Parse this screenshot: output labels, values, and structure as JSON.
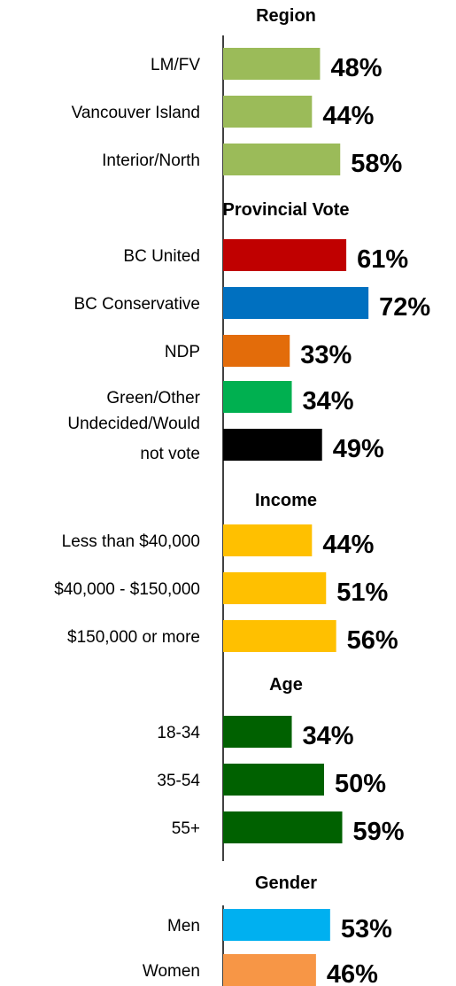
{
  "chart_data": {
    "type": "bar",
    "orientation": "horizontal",
    "groups": [
      {
        "name": "Region",
        "categories": [
          "LM/FV",
          "Vancouver Island",
          "Interior/North"
        ],
        "values": [
          48,
          44,
          58
        ],
        "value_labels": [
          "48%",
          "44%",
          "58%"
        ],
        "colors": [
          "#9bbb59",
          "#9bbb59",
          "#9bbb59"
        ]
      },
      {
        "name": "Provincial Vote",
        "categories": [
          "BC United",
          "BC Conservative",
          "NDP",
          "Green/Other",
          "Undecided/Would not vote"
        ],
        "values": [
          61,
          72,
          33,
          34,
          49
        ],
        "value_labels": [
          "61%",
          "72%",
          "33%",
          "34%",
          "49%"
        ],
        "colors": [
          "#c00000",
          "#0070c0",
          "#e36c0a",
          "#00b050",
          "#000000"
        ]
      },
      {
        "name": "Income",
        "categories": [
          "Less than $40,000",
          "$40,000 - $150,000",
          "$150,000 or more"
        ],
        "values": [
          44,
          51,
          56
        ],
        "value_labels": [
          "44%",
          "51%",
          "56%"
        ],
        "colors": [
          "#ffc000",
          "#ffc000",
          "#ffc000"
        ]
      },
      {
        "name": "Age",
        "categories": [
          "18-34",
          "35-54",
          "55+"
        ],
        "values": [
          34,
          50,
          59
        ],
        "value_labels": [
          "34%",
          "50%",
          "59%"
        ],
        "colors": [
          "#006100",
          "#006100",
          "#006100"
        ]
      },
      {
        "name": "Gender",
        "categories": [
          "Men",
          "Women"
        ],
        "values": [
          53,
          46
        ],
        "value_labels": [
          "53%",
          "46%"
        ],
        "colors": [
          "#00b0f0",
          "#f79646"
        ]
      }
    ],
    "xlim": [
      0,
      100
    ],
    "grid": false,
    "legend": "none"
  }
}
